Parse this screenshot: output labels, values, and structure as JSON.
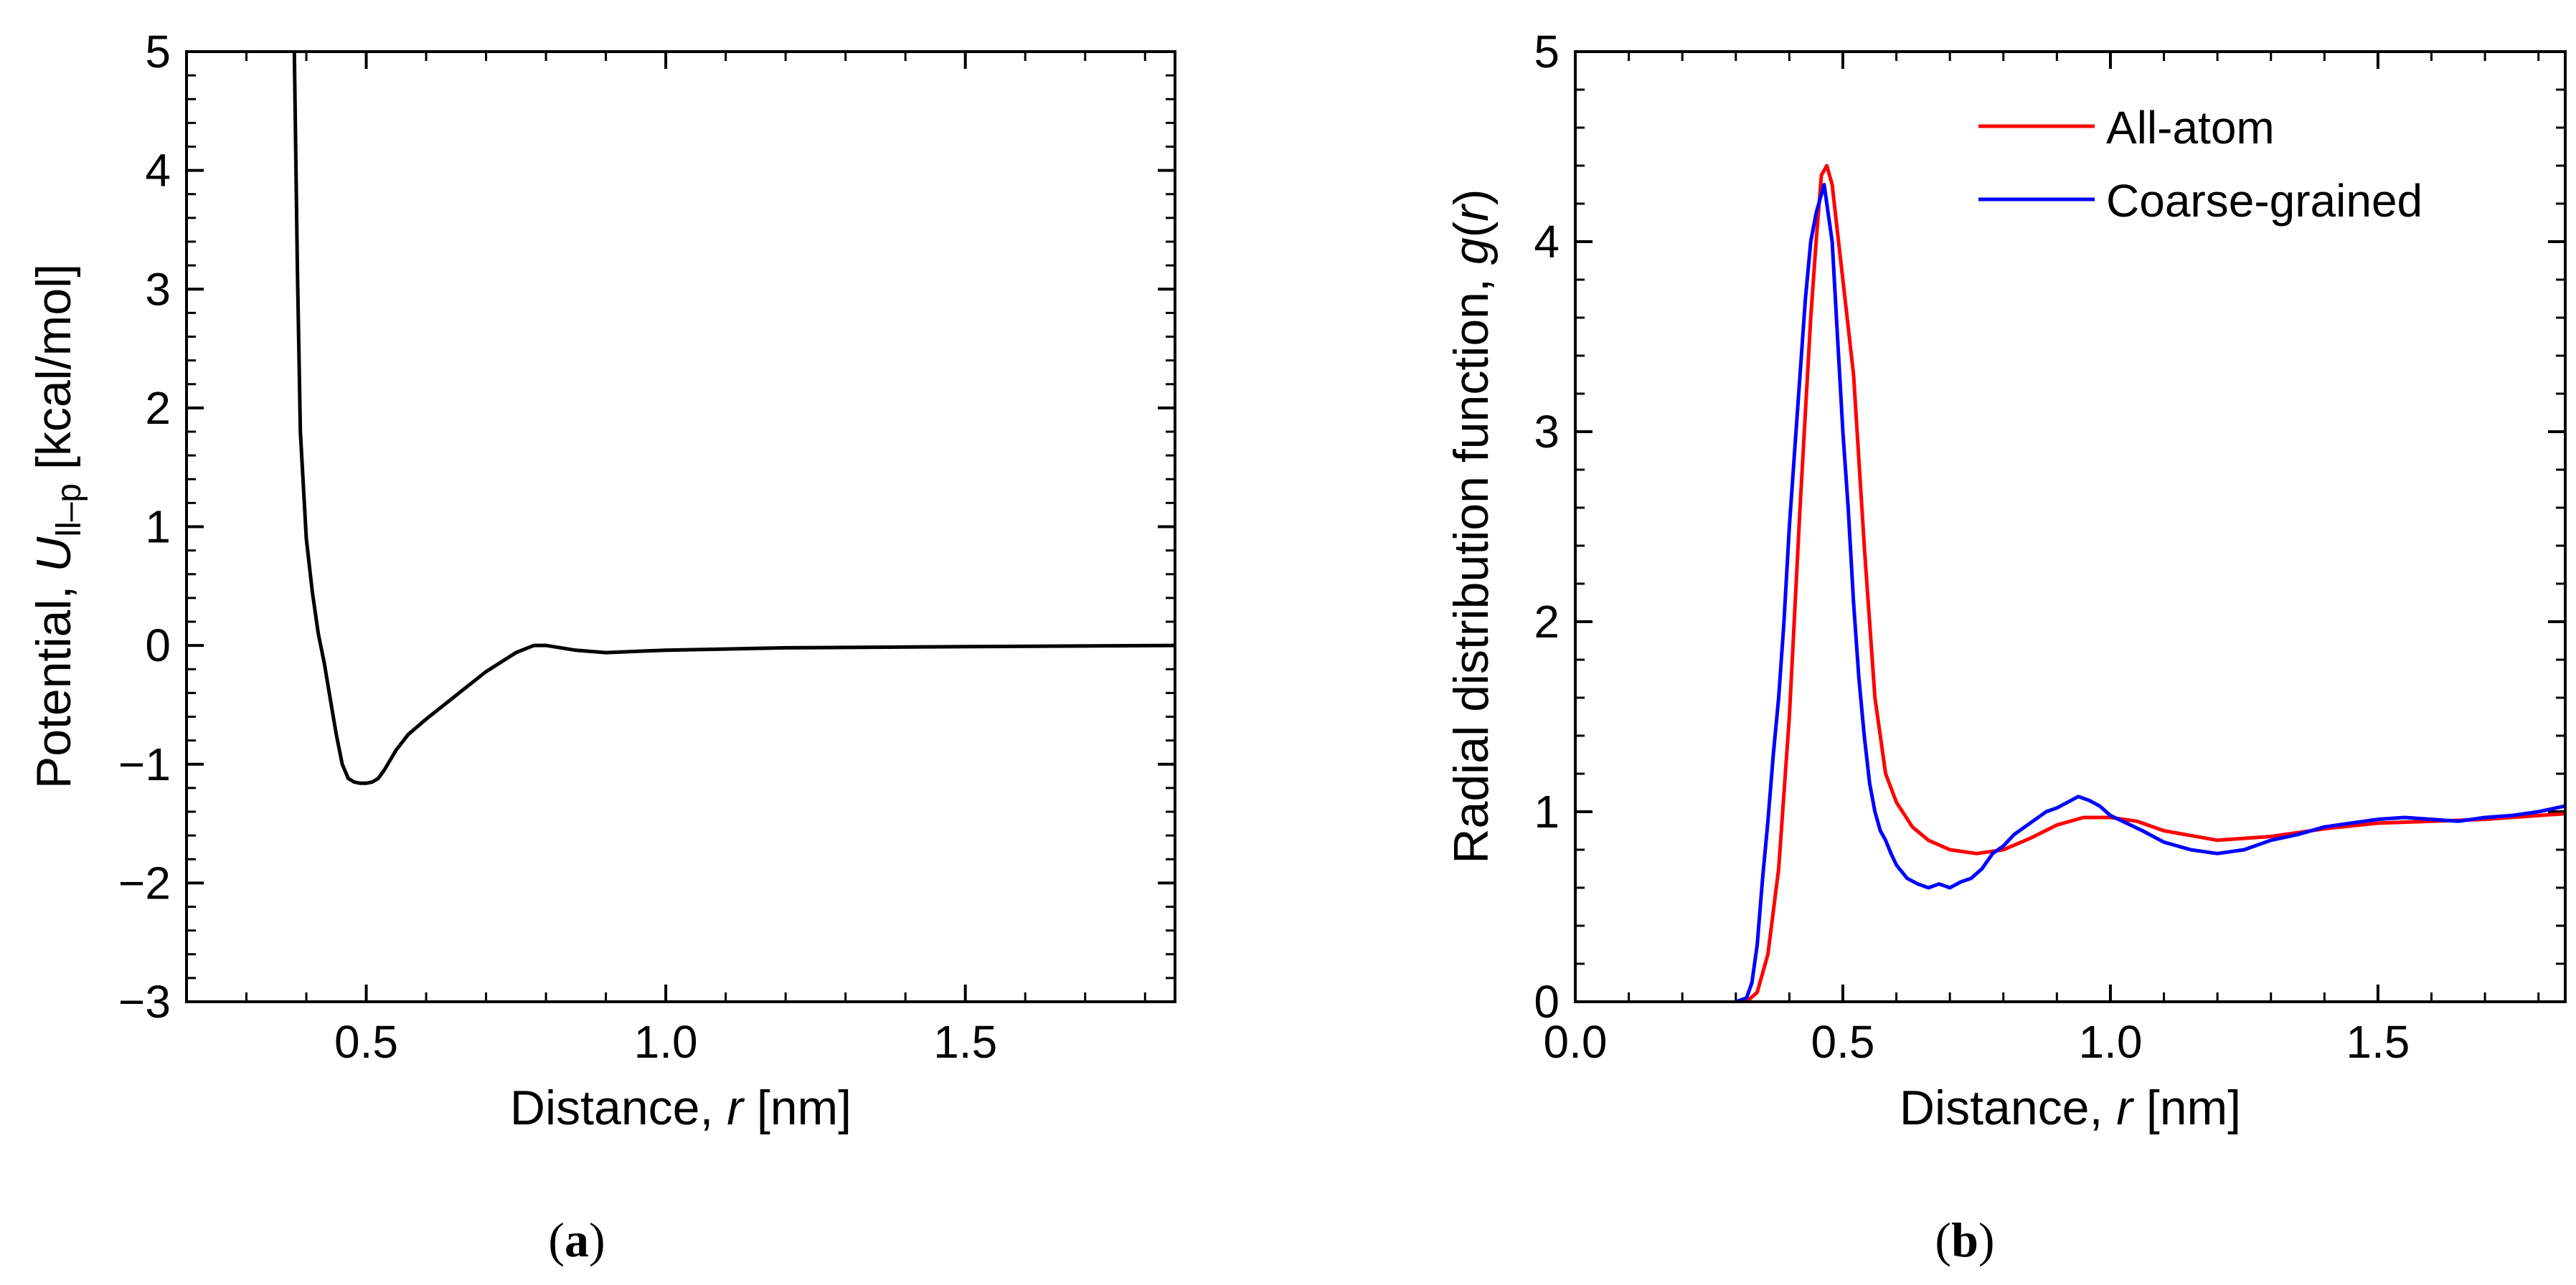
{
  "chart_data": [
    {
      "id": "a",
      "type": "line",
      "caption_open": "(",
      "caption_letter": "a",
      "caption_close": ")",
      "title": "",
      "xlabel_pre": "Distance, ",
      "xlabel_var": "r",
      "xlabel_post": " [nm]",
      "ylabel_pre": "Potential, ",
      "ylabel_var": "U",
      "ylabel_sub": "ll–p",
      "ylabel_post": " [kcal/mol]",
      "xlim": [
        0.2,
        1.85
      ],
      "ylim": [
        -3,
        5
      ],
      "xticks": [
        0.5,
        1.0,
        1.5
      ],
      "xtick_labels": [
        "0.5",
        "1.0",
        "1.5"
      ],
      "xminor_step": 0.1,
      "yticks": [
        -3,
        -2,
        -1,
        0,
        1,
        2,
        3,
        4,
        5
      ],
      "ytick_labels": [
        "−3",
        "−2",
        "−1",
        "0",
        "1",
        "2",
        "3",
        "4",
        "5"
      ],
      "yminor_step": 0.2,
      "grid": false,
      "series": [
        {
          "name": "Potential",
          "color": "#000000",
          "x": [
            0.38,
            0.385,
            0.39,
            0.4,
            0.41,
            0.42,
            0.43,
            0.44,
            0.45,
            0.46,
            0.47,
            0.48,
            0.49,
            0.5,
            0.51,
            0.52,
            0.53,
            0.55,
            0.57,
            0.6,
            0.65,
            0.7,
            0.75,
            0.78,
            0.8,
            0.85,
            0.9,
            0.95,
            1.0,
            1.2,
            1.5,
            1.85
          ],
          "y": [
            5.0,
            3.2,
            1.8,
            0.9,
            0.45,
            0.1,
            -0.15,
            -0.45,
            -0.75,
            -1.0,
            -1.12,
            -1.15,
            -1.16,
            -1.16,
            -1.15,
            -1.12,
            -1.05,
            -0.88,
            -0.75,
            -0.62,
            -0.42,
            -0.22,
            -0.06,
            0.0,
            0.0,
            -0.04,
            -0.06,
            -0.05,
            -0.04,
            -0.02,
            -0.01,
            0.0
          ]
        }
      ]
    },
    {
      "id": "b",
      "type": "line",
      "caption_open": "(",
      "caption_letter": "b",
      "caption_close": ")",
      "title": "",
      "xlabel_pre": "Distance, ",
      "xlabel_var": "r",
      "xlabel_post": " [nm]",
      "ylabel_pre": "Radial distribution function, ",
      "ylabel_var": "g",
      "ylabel_paren_open": "(",
      "ylabel_var2": "r",
      "ylabel_paren_close": ")",
      "xlim": [
        0.0,
        1.85
      ],
      "ylim": [
        0,
        5
      ],
      "xticks": [
        0.0,
        0.5,
        1.0,
        1.5
      ],
      "xtick_labels": [
        "0.0",
        "0.5",
        "1.0",
        "1.5"
      ],
      "xminor_step": 0.1,
      "yticks": [
        0,
        1,
        2,
        3,
        4,
        5
      ],
      "ytick_labels": [
        "0",
        "1",
        "2",
        "3",
        "4",
        "5"
      ],
      "yminor_step": 0.2,
      "grid": false,
      "legend_position": "top-right",
      "series": [
        {
          "name": "All-atom",
          "color": "#ff0000",
          "x": [
            0.3,
            0.32,
            0.34,
            0.36,
            0.38,
            0.4,
            0.42,
            0.44,
            0.45,
            0.46,
            0.47,
            0.48,
            0.49,
            0.5,
            0.52,
            0.54,
            0.56,
            0.58,
            0.6,
            0.63,
            0.66,
            0.7,
            0.75,
            0.8,
            0.85,
            0.9,
            0.95,
            1.0,
            1.05,
            1.1,
            1.2,
            1.3,
            1.4,
            1.5,
            1.6,
            1.7,
            1.85
          ],
          "y": [
            0.0,
            0.0,
            0.05,
            0.25,
            0.7,
            1.5,
            2.6,
            3.6,
            4.0,
            4.35,
            4.4,
            4.3,
            4.05,
            3.8,
            3.3,
            2.4,
            1.6,
            1.2,
            1.05,
            0.92,
            0.85,
            0.8,
            0.78,
            0.8,
            0.86,
            0.93,
            0.97,
            0.97,
            0.95,
            0.9,
            0.85,
            0.87,
            0.91,
            0.94,
            0.95,
            0.96,
            0.99
          ]
        },
        {
          "name": "Coarse-grained",
          "color": "#0000ff",
          "x": [
            0.3,
            0.32,
            0.33,
            0.34,
            0.35,
            0.36,
            0.37,
            0.38,
            0.39,
            0.4,
            0.41,
            0.42,
            0.43,
            0.44,
            0.45,
            0.46,
            0.465,
            0.47,
            0.48,
            0.49,
            0.5,
            0.51,
            0.52,
            0.53,
            0.54,
            0.55,
            0.56,
            0.57,
            0.58,
            0.59,
            0.6,
            0.62,
            0.64,
            0.66,
            0.68,
            0.7,
            0.72,
            0.74,
            0.76,
            0.78,
            0.8,
            0.82,
            0.84,
            0.86,
            0.88,
            0.9,
            0.92,
            0.94,
            0.96,
            0.98,
            1.0,
            1.03,
            1.06,
            1.1,
            1.15,
            1.2,
            1.25,
            1.3,
            1.35,
            1.4,
            1.45,
            1.5,
            1.55,
            1.6,
            1.65,
            1.7,
            1.75,
            1.8,
            1.85
          ],
          "y": [
            0.0,
            0.02,
            0.1,
            0.3,
            0.65,
            0.95,
            1.3,
            1.6,
            2.0,
            2.5,
            2.9,
            3.3,
            3.7,
            4.0,
            4.15,
            4.25,
            4.3,
            4.2,
            4.0,
            3.5,
            3.0,
            2.6,
            2.1,
            1.7,
            1.4,
            1.15,
            1.0,
            0.9,
            0.85,
            0.78,
            0.72,
            0.65,
            0.62,
            0.6,
            0.62,
            0.6,
            0.63,
            0.65,
            0.7,
            0.78,
            0.82,
            0.88,
            0.92,
            0.96,
            1.0,
            1.02,
            1.05,
            1.08,
            1.06,
            1.03,
            0.98,
            0.94,
            0.9,
            0.84,
            0.8,
            0.78,
            0.8,
            0.85,
            0.88,
            0.92,
            0.94,
            0.96,
            0.97,
            0.96,
            0.95,
            0.97,
            0.98,
            1.0,
            1.03
          ]
        }
      ]
    }
  ]
}
